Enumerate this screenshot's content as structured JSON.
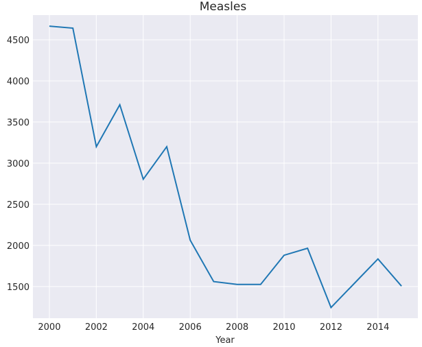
{
  "chart_data": {
    "type": "line",
    "title": "Measles",
    "xlabel": "Year",
    "ylabel": "",
    "x": [
      2000,
      2001,
      2002,
      2003,
      2004,
      2005,
      2006,
      2007,
      2008,
      2009,
      2010,
      2011,
      2012,
      2013,
      2014,
      2015
    ],
    "series": [
      {
        "values": [
          4666,
          4642,
          3200,
          3710,
          2805,
          3200,
          2063,
          1560,
          1525,
          1525,
          1880,
          1965,
          1245,
          1540,
          1835,
          1505
        ]
      }
    ],
    "xlim": [
      1999.3,
      2015.7
    ],
    "ylim": [
      1115,
      4800
    ],
    "xticks": [
      2000,
      2002,
      2004,
      2006,
      2008,
      2010,
      2012,
      2014
    ],
    "yticks": [
      1500,
      2000,
      2500,
      3000,
      3500,
      4000,
      4500
    ],
    "grid": true,
    "colors": {
      "line": "#1f77b4",
      "background": "#eaeaf2",
      "grid": "#ffffff"
    }
  }
}
